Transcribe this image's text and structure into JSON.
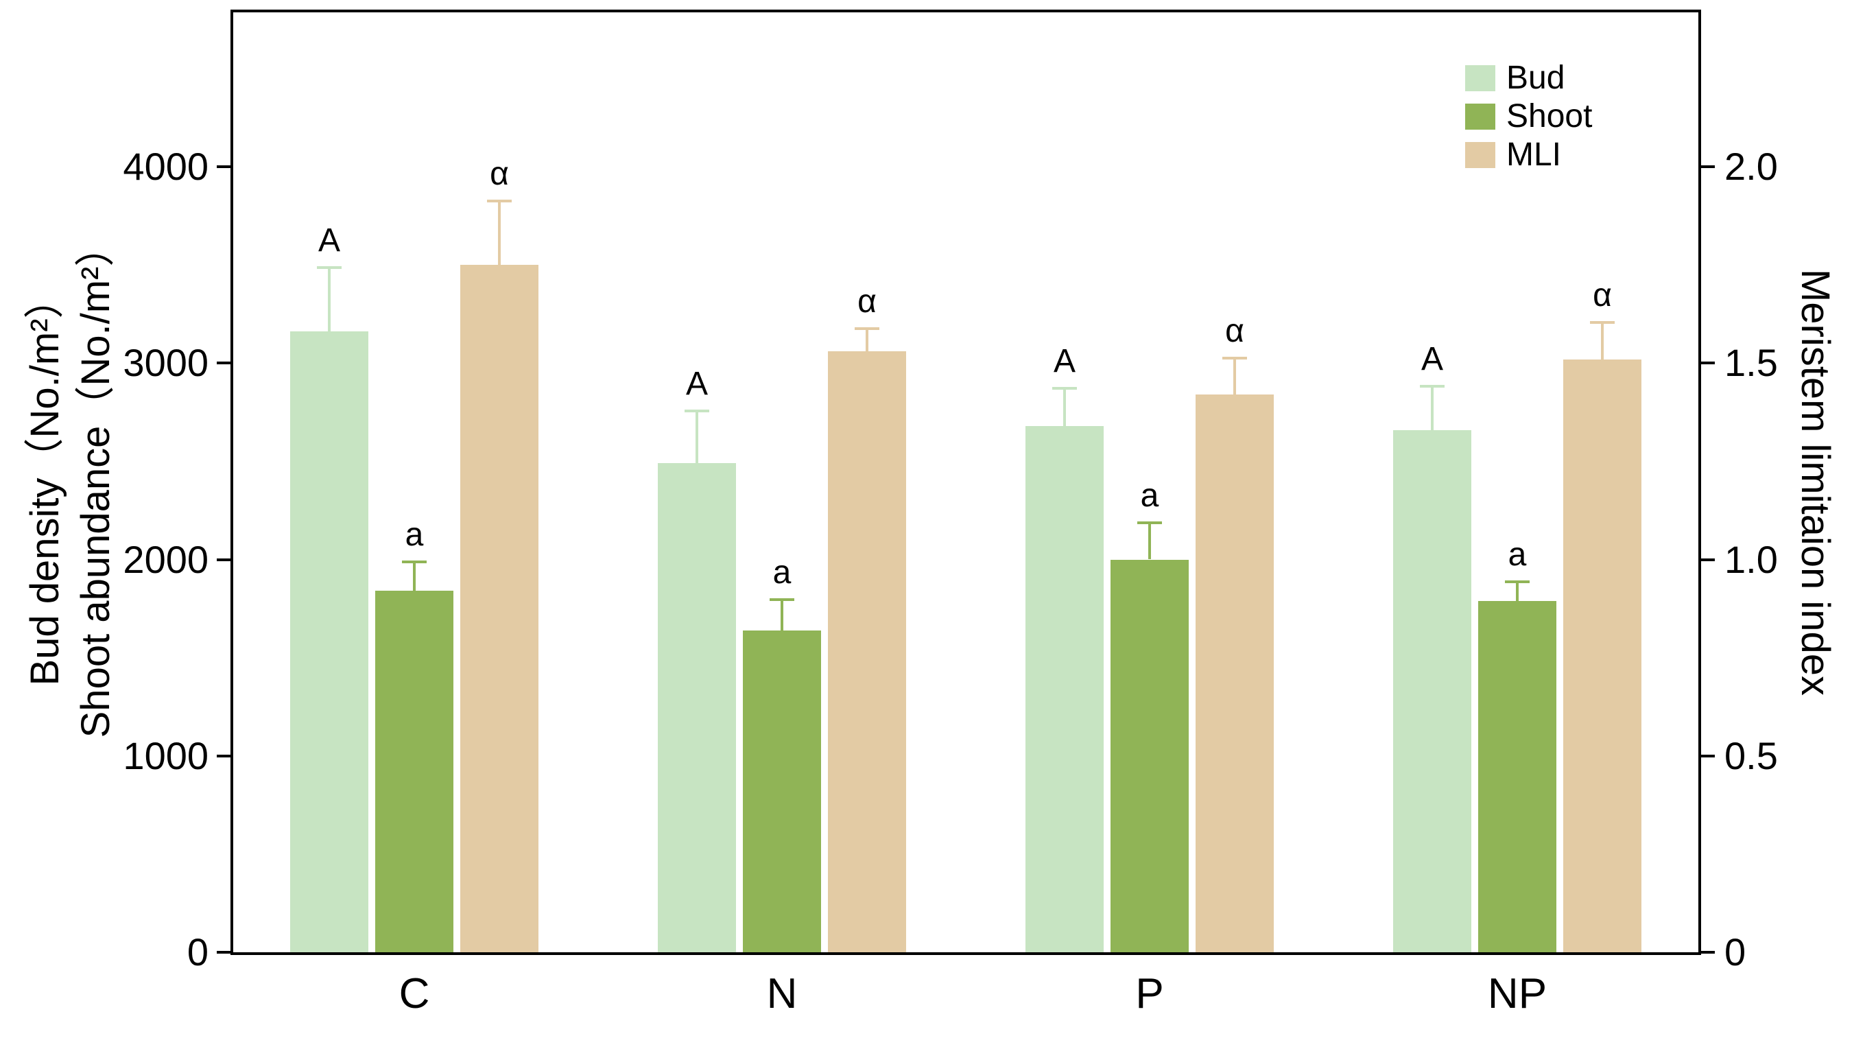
{
  "chart_data": {
    "type": "bar",
    "title": "",
    "grid": false,
    "categories": [
      "C",
      "N",
      "P",
      "NP"
    ],
    "left_axis": {
      "label_line1": "Bud density（No./m²）",
      "label_line2": "Shoot abundance（No./m²）",
      "ticks": [
        "0",
        "1000",
        "2000",
        "3000",
        "4000"
      ],
      "tick_values": [
        0,
        1000,
        2000,
        3000,
        4000
      ],
      "max": 4800
    },
    "right_axis": {
      "label": "Meristem limitaion index",
      "ticks": [
        "0",
        "0.5",
        "1.0",
        "1.5",
        "2.0"
      ],
      "tick_values": [
        0,
        0.5,
        1.0,
        1.5,
        2.0
      ],
      "max": 2.4
    },
    "legend": {
      "position": "top-right",
      "entries": [
        "Bud",
        "Shoot",
        "MLI"
      ]
    },
    "series": [
      {
        "name": "Bud",
        "axis": "left",
        "color": "#c7e4c2",
        "values": [
          3160,
          2490,
          2680,
          2660
        ],
        "errors": [
          320,
          260,
          185,
          215
        ],
        "sig_labels": [
          "A",
          "A",
          "A",
          "A"
        ]
      },
      {
        "name": "Shoot",
        "axis": "left",
        "color": "#90b456",
        "values": [
          1840,
          1640,
          2000,
          1790
        ],
        "errors": [
          140,
          150,
          180,
          90
        ],
        "sig_labels": [
          "a",
          "a",
          "a",
          "a"
        ]
      },
      {
        "name": "MLI",
        "axis": "right",
        "color": "#e3cba4",
        "values": [
          1.75,
          1.53,
          1.42,
          1.51
        ],
        "errors": [
          0.16,
          0.055,
          0.09,
          0.09
        ],
        "sig_labels": [
          "α",
          "α",
          "α",
          "α"
        ]
      }
    ]
  }
}
